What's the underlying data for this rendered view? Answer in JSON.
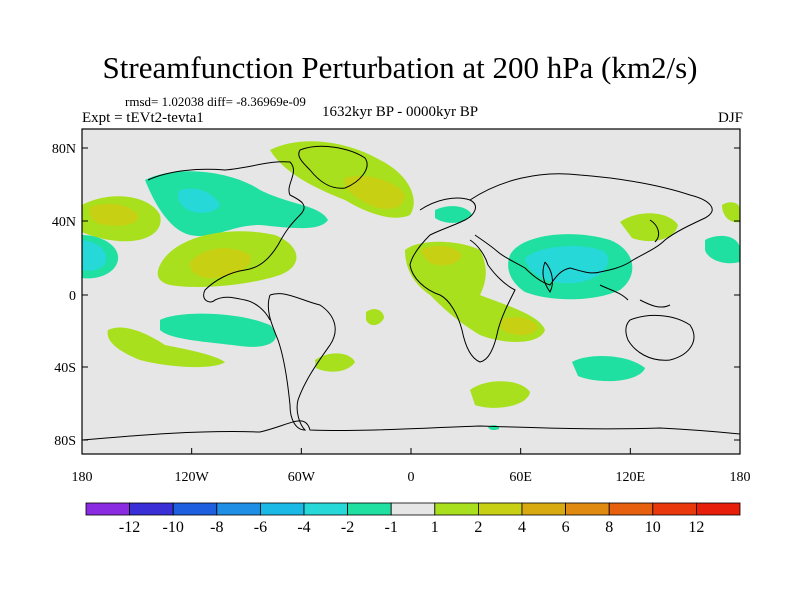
{
  "title": "Streamfunction Perturbation at 200 hPa (km2/s)",
  "stats_line": "rmsd= 1.02038 diff= -8.36969e-09",
  "experiment": "Expt = tEVt2-tevta1",
  "period": "1632kyr BP - 0000kyr BP",
  "season": "DJF",
  "lat_ticks": [
    "80N",
    "40N",
    "0",
    "40S",
    "80S"
  ],
  "lon_ticks": [
    "180",
    "120W",
    "60W",
    "0",
    "60E",
    "120E",
    "180"
  ],
  "colorbar": {
    "labels": [
      "-12",
      "-10",
      "-8",
      "-6",
      "-4",
      "-2",
      "-1",
      "1",
      "2",
      "4",
      "6",
      "8",
      "10",
      "12"
    ],
    "colors": [
      "#8a2be2",
      "#3a2fd6",
      "#1e5fe0",
      "#1f8fe6",
      "#1ab9e6",
      "#27d8d8",
      "#1fe0a0",
      "#e6e6e6",
      "#a8e01e",
      "#c8d014",
      "#d8aa10",
      "#e08a10",
      "#e6600e",
      "#e8380c",
      "#e61e0a"
    ]
  },
  "map_colors": {
    "background": "#e6e6e6",
    "coast": "#000000"
  }
}
